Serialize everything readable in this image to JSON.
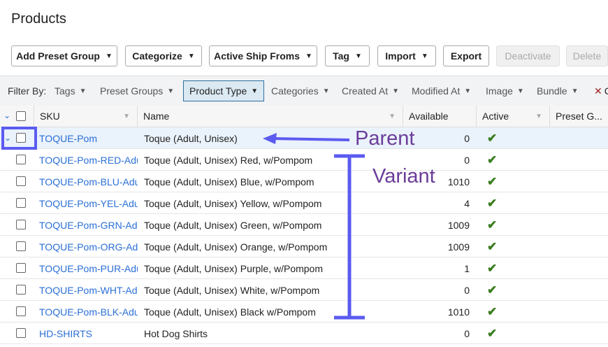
{
  "header": {
    "title": "Products"
  },
  "toolbar": {
    "buttons": [
      "Add Preset Group",
      "Categorize",
      "Active Ship Froms",
      "Tag",
      "Import",
      "Export",
      "Deactivate",
      "Delete"
    ]
  },
  "filter": {
    "label": "Filter By:",
    "items": [
      "Tags",
      "Preset Groups",
      "Product Type",
      "Categories",
      "Created At",
      "Modified At",
      "Image",
      "Bundle"
    ],
    "clear": "C"
  },
  "table": {
    "columns": [
      "SKU",
      "Name",
      "Available",
      "Active",
      "Preset G..."
    ],
    "rows": [
      [
        "TOQUE-Pom",
        "Toque (Adult, Unisex)",
        0
      ],
      [
        "TOQUE-Pom-RED-Adult",
        "Toque (Adult, Unisex) Red, w/Pompom",
        0
      ],
      [
        "TOQUE-Pom-BLU-Adult",
        "Toque (Adult, Unisex) Blue, w/Pompom",
        1010
      ],
      [
        "TOQUE-Pom-YEL-Adult",
        "Toque (Adult, Unisex) Yellow, w/Pompom",
        4
      ],
      [
        "TOQUE-Pom-GRN-Adult",
        "Toque (Adult, Unisex) Green, w/Pompom",
        1009
      ],
      [
        "TOQUE-Pom-ORG-Adult",
        "Toque (Adult, Unisex) Orange, w/Pompom",
        1009
      ],
      [
        "TOQUE-Pom-PUR-Adult",
        "Toque (Adult, Unisex) Purple, w/Pompom",
        1
      ],
      [
        "TOQUE-Pom-WHT-Adult",
        "Toque (Adult, Unisex) White, w/Pompom",
        0
      ],
      [
        "TOQUE-Pom-BLK-Adult",
        "Toque (Adult, Unisex) Black w/Pompom",
        1010
      ],
      [
        "HD-SHIRTS",
        "Hot Dog Shirts",
        0
      ]
    ]
  },
  "annotations": {
    "parent": "Parent",
    "variant": "Variant"
  }
}
